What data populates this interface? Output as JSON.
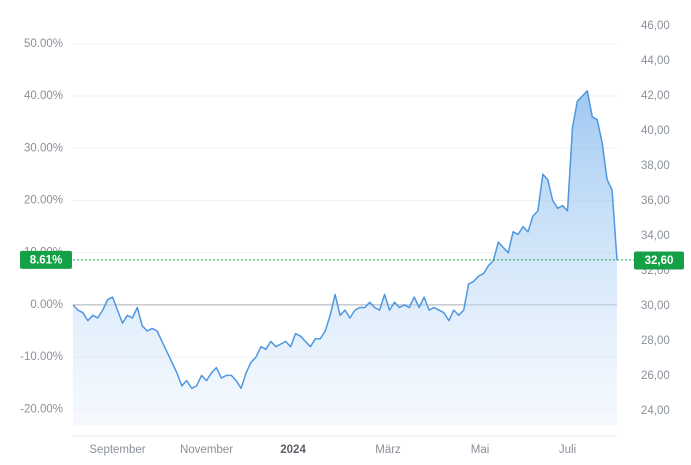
{
  "chart_data": {
    "type": "area",
    "series": [
      {
        "color": "#4f97e0",
        "values": [
          0,
          -1,
          -1.5,
          -3,
          -2,
          -2.5,
          -1,
          1,
          1.5,
          -1,
          -3.5,
          -2,
          -2.5,
          -0.5,
          -4,
          -5,
          -4.5,
          -5,
          -7,
          -9,
          -11,
          -13,
          -15.5,
          -14.5,
          -16,
          -15.5,
          -13.5,
          -14.5,
          -13,
          -12,
          -14,
          -13.5,
          -13.5,
          -14.5,
          -16,
          -13,
          -11,
          -10,
          -8,
          -8.5,
          -7,
          -8,
          -7.5,
          -7,
          -8,
          -5.5,
          -6,
          -7,
          -8,
          -6.5,
          -6.5,
          -5,
          -2,
          2,
          -2,
          -1,
          -2.5,
          -1,
          -0.5,
          -0.5,
          0.5,
          -0.5,
          -1,
          2,
          -1,
          0.5,
          -0.5,
          0,
          -0.5,
          1.5,
          -0.5,
          1.5,
          -1,
          -0.5,
          -1,
          -1.5,
          -3,
          -1,
          -2,
          -1,
          4,
          4.5,
          5.5,
          6,
          7.5,
          8.5,
          12,
          11,
          10,
          14,
          13.5,
          15,
          14,
          17,
          18,
          25,
          24,
          20,
          18.5,
          19,
          18,
          34,
          39,
          40,
          41,
          36,
          35.5,
          31,
          24,
          22,
          8.61
        ]
      }
    ],
    "xlim": [
      0,
      110
    ],
    "xticks": [
      {
        "value": 9,
        "label": "September"
      },
      {
        "value": 27,
        "label": "November"
      },
      {
        "value": 44.5,
        "label": "2024"
      },
      {
        "value": 63.7,
        "label": "März"
      },
      {
        "value": 82.3,
        "label": "Mai"
      },
      {
        "value": 100,
        "label": "Juli"
      }
    ],
    "ylim": [
      -23,
      53.6
    ],
    "yticks": [
      {
        "value": 50,
        "label": "50.00%"
      },
      {
        "value": 40,
        "label": "40.00%"
      },
      {
        "value": 30,
        "label": "30.00%"
      },
      {
        "value": 20,
        "label": "20.00%"
      },
      {
        "value": 10,
        "label": "10.00%"
      },
      {
        "value": 0,
        "label": "0.00%"
      },
      {
        "value": -10,
        "label": "-10.00%"
      },
      {
        "value": -20,
        "label": "-20.00%"
      }
    ],
    "y2lim": [
      23.2,
      46.06
    ],
    "y2ticks": [
      {
        "value": 46,
        "label": "46,00"
      },
      {
        "value": 44,
        "label": "44,00"
      },
      {
        "value": 42,
        "label": "42,00"
      },
      {
        "value": 40,
        "label": "40,00"
      },
      {
        "value": 38,
        "label": "38,00"
      },
      {
        "value": 36,
        "label": "36,00"
      },
      {
        "value": 34,
        "label": "34,00"
      },
      {
        "value": 32,
        "label": "32,00"
      },
      {
        "value": 30,
        "label": "30,00"
      },
      {
        "value": 28,
        "label": "28,00"
      },
      {
        "value": 26,
        "label": "26,00"
      },
      {
        "value": 24,
        "label": "24,00"
      }
    ],
    "last_value": {
      "value": 8.61,
      "label": "8.61%"
    },
    "last_price": {
      "value": 32.6,
      "label": "32,60"
    },
    "grid": true
  }
}
